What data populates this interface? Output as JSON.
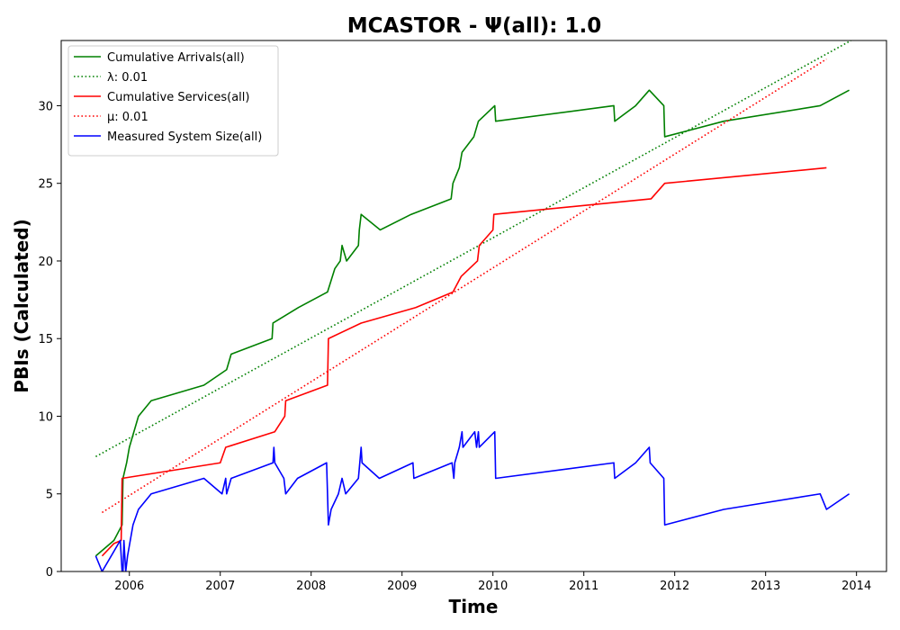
{
  "chart_data": {
    "type": "line",
    "title": "MCASTOR -  Ψ(all): 1.0",
    "xlabel": "Time",
    "ylabel": "PBIs (Calculated)",
    "xlim": [
      2005.25,
      2014.33
    ],
    "ylim": [
      0,
      34.2
    ],
    "x_ticks": [
      2006,
      2007,
      2008,
      2009,
      2010,
      2011,
      2012,
      2013,
      2014
    ],
    "y_ticks": [
      0,
      5,
      10,
      15,
      20,
      25,
      30
    ],
    "grid": false,
    "legend_position": "upper left",
    "series": [
      {
        "name": "Cumulative Arrivals(all)",
        "color": "#008000",
        "style": "solid",
        "points": [
          [
            2005.63,
            1
          ],
          [
            2005.83,
            2
          ],
          [
            2005.92,
            3
          ],
          [
            2005.93,
            6
          ],
          [
            2005.97,
            7
          ],
          [
            2006.0,
            8
          ],
          [
            2006.1,
            10
          ],
          [
            2006.24,
            11
          ],
          [
            2006.82,
            12
          ],
          [
            2007.07,
            13
          ],
          [
            2007.12,
            14
          ],
          [
            2007.57,
            15
          ],
          [
            2007.58,
            16
          ],
          [
            2007.86,
            17
          ],
          [
            2008.18,
            18
          ],
          [
            2008.26,
            19.5
          ],
          [
            2008.32,
            20
          ],
          [
            2008.34,
            21
          ],
          [
            2008.39,
            20
          ],
          [
            2008.52,
            21
          ],
          [
            2008.53,
            22
          ],
          [
            2008.55,
            23
          ],
          [
            2008.76,
            22
          ],
          [
            2009.1,
            23
          ],
          [
            2009.54,
            24
          ],
          [
            2009.56,
            25
          ],
          [
            2009.63,
            26
          ],
          [
            2009.66,
            27
          ],
          [
            2009.79,
            28
          ],
          [
            2009.84,
            29
          ],
          [
            2010.02,
            30
          ],
          [
            2010.03,
            29
          ],
          [
            2011.33,
            30
          ],
          [
            2011.34,
            29
          ],
          [
            2011.57,
            30
          ],
          [
            2011.72,
            31
          ],
          [
            2011.88,
            30
          ],
          [
            2011.89,
            28
          ],
          [
            2012.54,
            29
          ],
          [
            2013.6,
            30
          ],
          [
            2013.92,
            31
          ]
        ]
      },
      {
        "name": "λ: 0.01",
        "color": "#008000",
        "style": "dotted",
        "points": [
          [
            2005.63,
            7.4
          ],
          [
            2013.94,
            34.2
          ]
        ]
      },
      {
        "name": "Cumulative Services(all)",
        "color": "#ff0000",
        "style": "solid",
        "points": [
          [
            2005.7,
            1
          ],
          [
            2005.83,
            1.8
          ],
          [
            2005.91,
            2
          ],
          [
            2005.92,
            6
          ],
          [
            2007.0,
            7
          ],
          [
            2007.06,
            8
          ],
          [
            2007.6,
            9
          ],
          [
            2007.71,
            10
          ],
          [
            2007.72,
            11
          ],
          [
            2008.18,
            12
          ],
          [
            2008.19,
            15
          ],
          [
            2008.55,
            16
          ],
          [
            2009.15,
            17
          ],
          [
            2009.56,
            18
          ],
          [
            2009.65,
            19
          ],
          [
            2009.83,
            20
          ],
          [
            2009.85,
            21
          ],
          [
            2010.0,
            22
          ],
          [
            2010.01,
            23
          ],
          [
            2011.74,
            24
          ],
          [
            2011.89,
            25
          ],
          [
            2013.67,
            26
          ]
        ]
      },
      {
        "name": "μ: 0.01",
        "color": "#ff0000",
        "style": "dotted",
        "points": [
          [
            2005.7,
            3.8
          ],
          [
            2013.67,
            33
          ]
        ]
      },
      {
        "name": "Measured System Size(all)",
        "color": "#0000ff",
        "style": "solid",
        "points": [
          [
            2005.63,
            1
          ],
          [
            2005.7,
            0
          ],
          [
            2005.85,
            1.5
          ],
          [
            2005.9,
            2
          ],
          [
            2005.92,
            0
          ],
          [
            2005.93,
            0
          ],
          [
            2005.94,
            2
          ],
          [
            2005.96,
            0
          ],
          [
            2005.98,
            1
          ],
          [
            2006.04,
            3
          ],
          [
            2006.1,
            4
          ],
          [
            2006.24,
            5
          ],
          [
            2006.82,
            6
          ],
          [
            2007.02,
            5
          ],
          [
            2007.06,
            6
          ],
          [
            2007.07,
            5
          ],
          [
            2007.12,
            6
          ],
          [
            2007.58,
            7
          ],
          [
            2007.59,
            8
          ],
          [
            2007.6,
            7
          ],
          [
            2007.7,
            6
          ],
          [
            2007.72,
            5
          ],
          [
            2007.85,
            6
          ],
          [
            2008.17,
            7
          ],
          [
            2008.19,
            3
          ],
          [
            2008.22,
            4
          ],
          [
            2008.3,
            5
          ],
          [
            2008.34,
            6
          ],
          [
            2008.38,
            5
          ],
          [
            2008.52,
            6
          ],
          [
            2008.55,
            8
          ],
          [
            2008.56,
            7
          ],
          [
            2008.75,
            6
          ],
          [
            2009.12,
            7
          ],
          [
            2009.13,
            6
          ],
          [
            2009.55,
            7
          ],
          [
            2009.57,
            6
          ],
          [
            2009.58,
            7
          ],
          [
            2009.63,
            8
          ],
          [
            2009.66,
            9
          ],
          [
            2009.67,
            8
          ],
          [
            2009.8,
            9
          ],
          [
            2009.82,
            8
          ],
          [
            2009.84,
            9
          ],
          [
            2009.85,
            8
          ],
          [
            2010.02,
            9
          ],
          [
            2010.03,
            6
          ],
          [
            2011.33,
            7
          ],
          [
            2011.34,
            6
          ],
          [
            2011.57,
            7
          ],
          [
            2011.72,
            8
          ],
          [
            2011.73,
            7
          ],
          [
            2011.88,
            6
          ],
          [
            2011.89,
            3
          ],
          [
            2012.54,
            4
          ],
          [
            2013.6,
            5
          ],
          [
            2013.67,
            4
          ],
          [
            2013.92,
            5
          ]
        ]
      }
    ]
  }
}
